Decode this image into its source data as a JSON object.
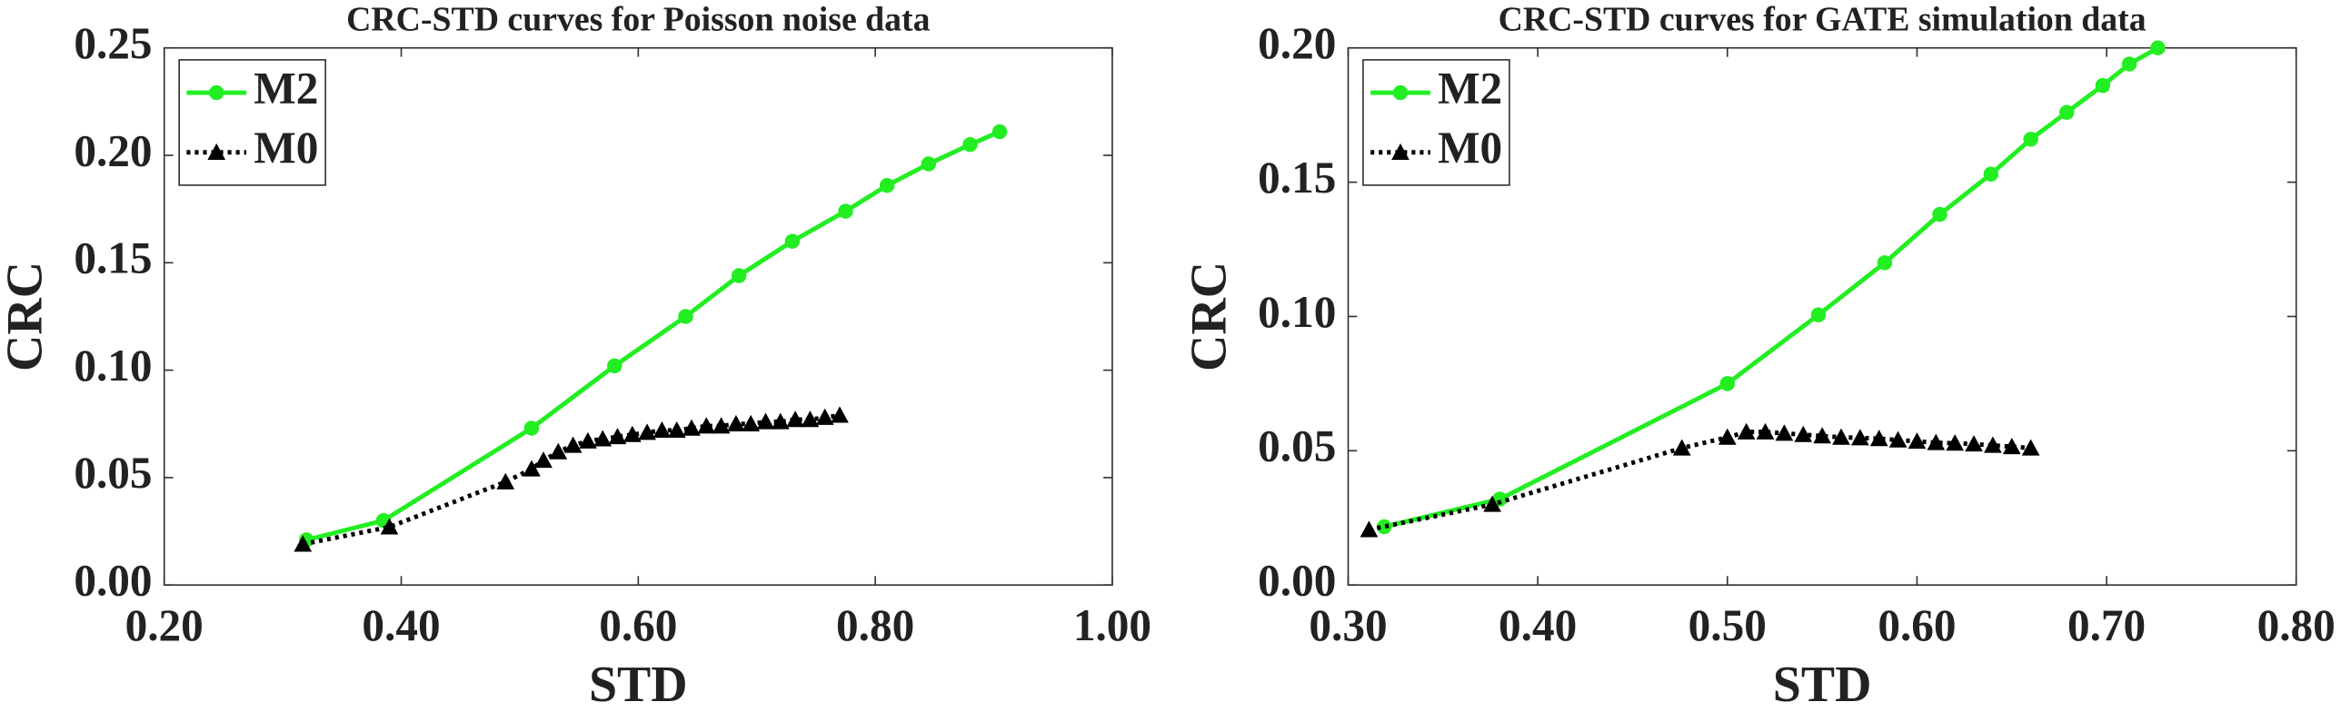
{
  "chart_data": [
    {
      "type": "line",
      "title": "CRC-STD curves for Poisson noise data",
      "xlabel": "STD",
      "ylabel": "CRC",
      "xlim": [
        0.2,
        1.0
      ],
      "ylim": [
        0,
        0.25
      ],
      "xticks": [
        {
          "value": 0.2,
          "label": "0.20"
        },
        {
          "value": 0.4,
          "label": "0.40"
        },
        {
          "value": 0.6,
          "label": "0.60"
        },
        {
          "value": 0.8,
          "label": "0.80"
        },
        {
          "value": 1.0,
          "label": "1.00"
        }
      ],
      "yticks": [
        {
          "value": 0,
          "label": "0.00"
        },
        {
          "value": 0.05,
          "label": "0.05"
        },
        {
          "value": 0.1,
          "label": "0.10"
        },
        {
          "value": 0.15,
          "label": "0.15"
        },
        {
          "value": 0.2,
          "label": "0.20"
        },
        {
          "value": 0.25,
          "label": "0.25"
        }
      ],
      "legend": "upper left",
      "series": [
        {
          "name": "M2",
          "color": "#22ee22",
          "marker": "circle",
          "linestyle": "solid",
          "x": [
            0.32,
            0.385,
            0.51,
            0.58,
            0.64,
            0.685,
            0.73,
            0.775,
            0.81,
            0.845,
            0.88,
            0.905
          ],
          "values": [
            0.021,
            0.03,
            0.073,
            0.102,
            0.125,
            0.144,
            0.16,
            0.174,
            0.186,
            0.196,
            0.205,
            0.211
          ]
        },
        {
          "name": "M0",
          "color": "#000000",
          "marker": "triangle",
          "linestyle": "dotted",
          "x": [
            0.317,
            0.39,
            0.488,
            0.51,
            0.52,
            0.5325,
            0.545,
            0.5575,
            0.57,
            0.5825,
            0.595,
            0.6075,
            0.62,
            0.6325,
            0.645,
            0.6575,
            0.67,
            0.6825,
            0.695,
            0.7075,
            0.72,
            0.7325,
            0.745,
            0.7575,
            0.77
          ],
          "values": [
            0.019,
            0.027,
            0.048,
            0.054,
            0.058,
            0.062,
            0.065,
            0.067,
            0.068,
            0.069,
            0.07,
            0.071,
            0.072,
            0.072,
            0.073,
            0.074,
            0.074,
            0.075,
            0.075,
            0.076,
            0.076,
            0.077,
            0.077,
            0.078,
            0.079
          ]
        }
      ]
    },
    {
      "type": "line",
      "title": "CRC-STD curves for GATE simulation data",
      "xlabel": "STD",
      "ylabel": "CRC",
      "xlim": [
        0.3,
        0.8
      ],
      "ylim": [
        0,
        0.2
      ],
      "xticks": [
        {
          "value": 0.3,
          "label": "0.30"
        },
        {
          "value": 0.4,
          "label": "0.40"
        },
        {
          "value": 0.5,
          "label": "0.50"
        },
        {
          "value": 0.6,
          "label": "0.60"
        },
        {
          "value": 0.7,
          "label": "0.70"
        },
        {
          "value": 0.8,
          "label": "0.80"
        }
      ],
      "yticks": [
        {
          "value": 0,
          "label": "0.00"
        },
        {
          "value": 0.05,
          "label": "0.05"
        },
        {
          "value": 0.1,
          "label": "0.10"
        },
        {
          "value": 0.15,
          "label": "0.15"
        },
        {
          "value": 0.2,
          "label": "0.20"
        }
      ],
      "legend": "upper left",
      "series": [
        {
          "name": "M2",
          "color": "#22ee22",
          "marker": "circle",
          "linestyle": "solid",
          "x": [
            0.319,
            0.38,
            0.5,
            0.548,
            0.583,
            0.612,
            0.639,
            0.66,
            0.679,
            0.698,
            0.712,
            0.727
          ],
          "values": [
            0.0217,
            0.032,
            0.075,
            0.1006,
            0.12,
            0.138,
            0.153,
            0.166,
            0.176,
            0.186,
            0.194,
            0.2
          ]
        },
        {
          "name": "M0",
          "color": "#000000",
          "marker": "triangle",
          "linestyle": "dotted",
          "x": [
            0.311,
            0.376,
            0.476,
            0.5,
            0.51,
            0.52,
            0.53,
            0.54,
            0.55,
            0.56,
            0.57,
            0.58,
            0.59,
            0.6,
            0.61,
            0.62,
            0.63,
            0.64,
            0.65,
            0.66
          ],
          "values": [
            0.0206,
            0.03,
            0.051,
            0.055,
            0.057,
            0.057,
            0.0565,
            0.056,
            0.0555,
            0.055,
            0.0548,
            0.0545,
            0.054,
            0.0535,
            0.053,
            0.0528,
            0.0525,
            0.052,
            0.0515,
            0.051
          ]
        }
      ]
    }
  ]
}
